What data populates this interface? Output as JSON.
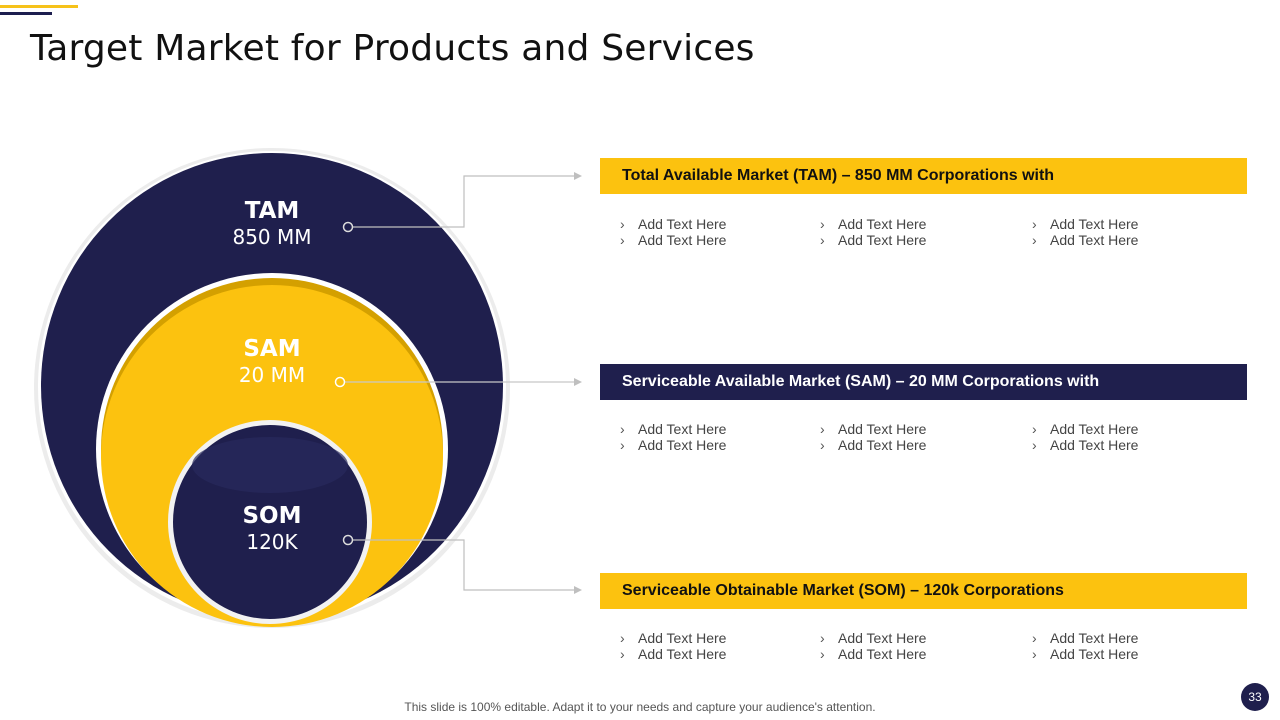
{
  "slide": {
    "title": "Target Market for Products and Services",
    "footer": "This slide is 100% editable. Adapt it to your needs and capture your audience's attention.",
    "page_number": "33"
  },
  "colors": {
    "navy": "#1f1f4d",
    "yellow": "#fcc20f",
    "dark_yellow": "#d4a000",
    "white": "#ffffff"
  },
  "circles": {
    "tam": {
      "title": "TAM",
      "value": "850 MM"
    },
    "sam": {
      "title": "SAM",
      "value": "20 MM"
    },
    "som": {
      "title": "SOM",
      "value": "120K"
    }
  },
  "markets": [
    {
      "heading": "Total Available Market (TAM) – 850 MM Corporations with",
      "columns": [
        [
          "Add Text Here",
          "Add Text Here"
        ],
        [
          "Add Text Here",
          "Add Text Here"
        ],
        [
          "Add Text Here",
          "Add Text Here"
        ]
      ]
    },
    {
      "heading": "Serviceable Available Market (SAM) – 20 MM Corporations with",
      "columns": [
        [
          "Add Text Here",
          "Add Text Here"
        ],
        [
          "Add Text Here",
          "Add Text Here"
        ],
        [
          "Add Text Here",
          "Add Text Here"
        ]
      ]
    },
    {
      "heading": "Serviceable Obtainable Market (SOM) – 120k Corporations",
      "columns": [
        [
          "Add Text Here",
          "Add Text Here"
        ],
        [
          "Add Text Here",
          "Add Text Here"
        ],
        [
          "Add Text Here",
          "Add Text Here"
        ]
      ]
    }
  ]
}
